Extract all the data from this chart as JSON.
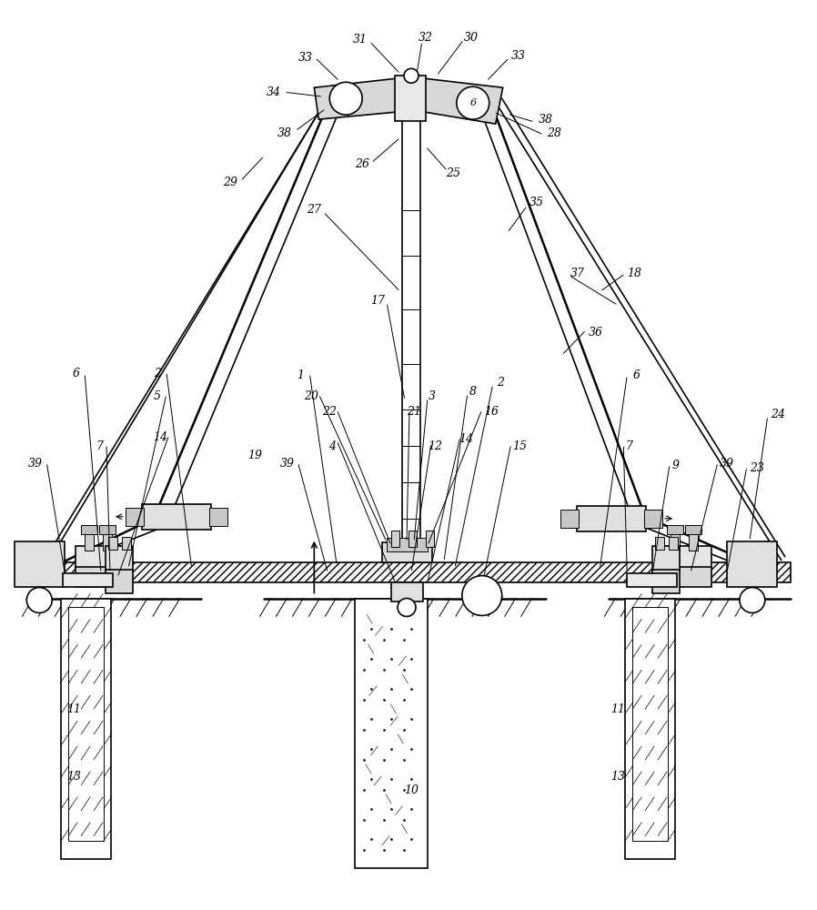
{
  "bg_color": "#ffffff",
  "fig_w": 8.98,
  "fig_h": 10.0,
  "dpi": 100,
  "lw_main": 1.2,
  "lw_thin": 0.7,
  "lw_thick": 1.8,
  "font_size": 9,
  "font_family": "serif"
}
